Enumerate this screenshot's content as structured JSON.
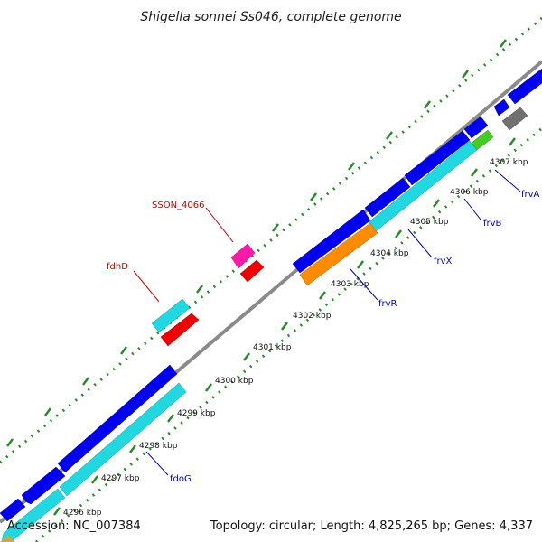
{
  "title": "Shigella sonnei Ss046, complete genome",
  "footer": {
    "accession": "Accession: NC_007384",
    "summary": "Topology: circular; Length: 4,825,265 bp; Genes: 4,337"
  },
  "colors": {
    "backbone": "#8a8a8a",
    "dots": "#2a8a2a",
    "forward_cds": "#0000ee",
    "reverse_cds": "#22d8e0",
    "red_label": "#cc0000",
    "blue_label": "#0000bb"
  },
  "ticks": [
    "4296 kbp",
    "4297 kbp",
    "4298 kbp",
    "4299 kbp",
    "4300 kbp",
    "4301 kbp",
    "4302 kbp",
    "4303 kbp",
    "4304 kbp",
    "4305 kbp",
    "4306 kbp",
    "4307 kbp"
  ],
  "gene_labels": {
    "sson_4066": "SSON_4066",
    "fdhd": "fdhD",
    "frva": "frvA",
    "frvb": "frvB",
    "frvx": "frvX",
    "frvr": "frvR",
    "fdog": "fdoG"
  }
}
